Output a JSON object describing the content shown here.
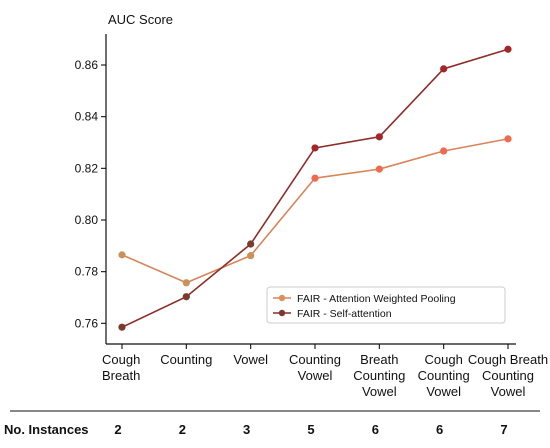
{
  "chart_data": {
    "type": "line",
    "ylabel": "AUC Score",
    "ylim": [
      0.752,
      0.872
    ],
    "yticks": [
      0.76,
      0.78,
      0.8,
      0.82,
      0.84,
      0.86
    ],
    "ytick_labels": [
      "0.76",
      "0.78",
      "0.80",
      "0.82",
      "0.84",
      "0.86"
    ],
    "categories": [
      [
        "Cough",
        "Breath"
      ],
      [
        "Counting"
      ],
      [
        "Vowel"
      ],
      [
        "Counting",
        "Vowel"
      ],
      [
        "Breath",
        "Counting",
        "Vowel"
      ],
      [
        "Cough",
        "Counting",
        "Vowel"
      ],
      [
        "Cough Breath",
        "Counting",
        "Vowel"
      ]
    ],
    "series": [
      {
        "name": "FAIR - Attention Weighted Pooling",
        "values": [
          0.7865,
          0.7757,
          0.7862,
          0.8162,
          0.8197,
          0.8267,
          0.8314
        ],
        "point_colors": [
          "#C9925A",
          "#C9925A",
          "#C9925A",
          "#EF6A4E",
          "#EF6A4E",
          "#EF6A4E",
          "#EF6A4E"
        ],
        "line_color": "#D9845A",
        "legend_color": "#D9925A"
      },
      {
        "name": "FAIR - Self-attention",
        "values": [
          0.7585,
          0.7703,
          0.7907,
          0.8279,
          0.8322,
          0.8585,
          0.8661
        ],
        "point_colors": [
          "#7A3A2E",
          "#7A3A2E",
          "#7A3A2E",
          "#A42626",
          "#A42626",
          "#A42626",
          "#A42626"
        ],
        "line_color": "#8E2C28",
        "legend_color": "#7A3A2E"
      }
    ],
    "legend_position": "lower-right",
    "grid": false,
    "table_row": {
      "title": "No. Instances",
      "values": [
        "2",
        "2",
        "3",
        "5",
        "6",
        "6",
        "7"
      ]
    }
  }
}
